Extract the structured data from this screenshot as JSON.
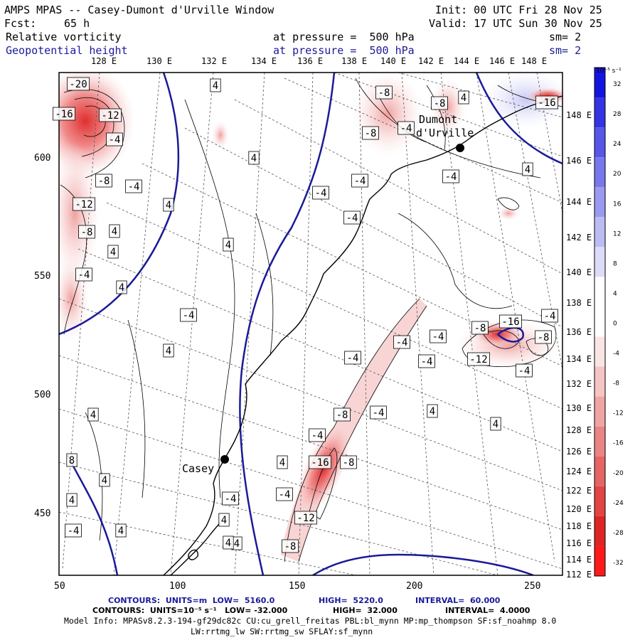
{
  "header": {
    "model": "AMPS MPAS -- Casey-Dumont d'Urville Window",
    "init": "Init: 00 UTC Fri 28 Nov 25",
    "fcst_label": "Fcst:",
    "fcst_value": "65 h",
    "valid": "Valid: 17 UTC Sun 30 Nov 25",
    "field1": "Relative vorticity",
    "field1_level": "at pressure =  500 hPa",
    "field1_sm": "sm= 2",
    "field2": "Geopotential height",
    "field2_level": "at pressure =  500 hPa",
    "field2_sm": "sm= 2"
  },
  "map": {
    "top_lon_labels": [
      "128 E",
      "130 E",
      "132 E",
      "134 E",
      "136 E",
      "138 E",
      "140 E",
      "142 E",
      "144 E",
      "146 E",
      "148 E"
    ],
    "right_lat_labels": [
      "148 E",
      "146 E",
      "144 E",
      "142 E",
      "140 E",
      "138 E",
      "136 E",
      "134 E",
      "132 E",
      "130 E",
      "128 E",
      "126 E",
      "124 E",
      "122 E",
      "120 E",
      "118 E",
      "116 E",
      "114 E",
      "112 E"
    ],
    "x_ticks": [
      "50",
      "100",
      "150",
      "200",
      "250"
    ],
    "y_ticks": [
      "600",
      "550",
      "500",
      "450"
    ],
    "places": [
      {
        "name": "Dumont",
        "name2": "d'Urville"
      },
      {
        "name": "Casey"
      }
    ],
    "contour_labels": [
      {
        "t": "-20"
      },
      {
        "t": "-16"
      },
      {
        "t": "-12"
      },
      {
        "t": "-4"
      },
      {
        "t": "-8"
      },
      {
        "t": "-4"
      },
      {
        "t": "4"
      },
      {
        "t": "-12"
      },
      {
        "t": "-8"
      },
      {
        "t": "4"
      },
      {
        "t": "4"
      },
      {
        "t": "-4"
      },
      {
        "t": "4"
      },
      {
        "t": "4"
      },
      {
        "t": "4"
      },
      {
        "t": "-4"
      },
      {
        "t": "4"
      },
      {
        "t": "4"
      },
      {
        "t": "4"
      },
      {
        "t": "-8"
      },
      {
        "t": "-8"
      },
      {
        "t": "-4"
      },
      {
        "t": "-8"
      },
      {
        "t": "-4"
      },
      {
        "t": "4"
      },
      {
        "t": "-4"
      },
      {
        "t": "-16"
      },
      {
        "t": "4"
      },
      {
        "t": "-4"
      },
      {
        "t": "-4"
      },
      {
        "t": "-4"
      },
      {
        "t": "-4"
      },
      {
        "t": "-4"
      },
      {
        "t": "-16"
      },
      {
        "t": "-8"
      },
      {
        "t": "-4"
      },
      {
        "t": "-8"
      },
      {
        "t": "-12"
      },
      {
        "t": "-4"
      },
      {
        "t": "4"
      },
      {
        "t": "-8"
      },
      {
        "t": "-4"
      },
      {
        "t": "-4"
      },
      {
        "t": "-16"
      },
      {
        "t": "-8"
      },
      {
        "t": "-4"
      },
      {
        "t": "-12"
      },
      {
        "t": "4"
      },
      {
        "t": "-4"
      },
      {
        "t": "4"
      },
      {
        "t": "4"
      },
      {
        "t": "8"
      },
      {
        "t": "4"
      },
      {
        "t": "4"
      },
      {
        "t": "4"
      },
      {
        "t": "-4"
      },
      {
        "t": "4"
      },
      {
        "t": "-4"
      },
      {
        "t": "-8"
      },
      {
        "t": "4"
      }
    ]
  },
  "colorbar": {
    "unit": "10⁻⁵ s⁻¹",
    "labels": [
      "32",
      "28",
      "24",
      "20",
      "16",
      "12",
      "8",
      "4",
      "0",
      "-4",
      "-8",
      "-12",
      "-16",
      "-20",
      "-24",
      "-28",
      "-32"
    ],
    "colors": [
      "#1414e0",
      "#3434e4",
      "#5656e8",
      "#7878ec",
      "#9a9af0",
      "#bcbcf4",
      "#dcdcfa",
      "#ffffff",
      "#ffffff",
      "#fbe4e4",
      "#f5c4c4",
      "#f0a4a4",
      "#eb8484",
      "#e66464",
      "#e24444",
      "#de2424",
      "#ff1a1a"
    ]
  },
  "footer": {
    "c1_a": "CONTOURS:  UNITS=m  LOW=  5160.0",
    "c1_b": "HIGH=  5220.0",
    "c1_c": "INTERVAL=  60.000",
    "c2_a": "CONTOURS:  UNITS=10⁻⁵ s⁻¹   LOW= -32.000",
    "c2_b": "HIGH=  32.000",
    "c2_c": "INTERVAL=  4.0000",
    "model_info": "Model Info: MPASv8.2.3-194-gf29dc82c CU:cu_grell_freitas PBL:bl_mynn MP:mp_thompson SF:sf_noahmp 8.0",
    "model_info2": "LW:rrtmg_lw SW:rrtmg_sw SFLAY:sf_mynn"
  },
  "colors": {
    "accent_blue": "#1a1a9a",
    "land_line": "#000000",
    "grid": "#555555"
  }
}
